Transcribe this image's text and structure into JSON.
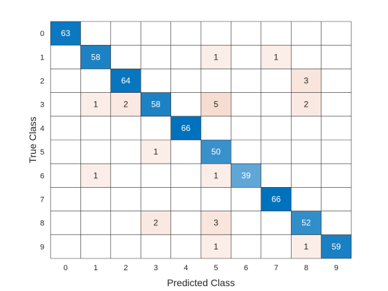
{
  "chart_data": {
    "type": "heatmap",
    "title": "",
    "xlabel": "Predicted Class",
    "ylabel": "True Class",
    "x_categories": [
      "0",
      "1",
      "2",
      "3",
      "4",
      "5",
      "6",
      "7",
      "8",
      "9"
    ],
    "y_categories": [
      "0",
      "1",
      "2",
      "3",
      "4",
      "5",
      "6",
      "7",
      "8",
      "9"
    ],
    "matrix": [
      [
        63,
        0,
        0,
        0,
        0,
        0,
        0,
        0,
        0,
        0
      ],
      [
        0,
        58,
        0,
        0,
        0,
        1,
        0,
        1,
        0,
        0
      ],
      [
        0,
        0,
        64,
        0,
        0,
        0,
        0,
        0,
        3,
        0
      ],
      [
        0,
        1,
        2,
        58,
        0,
        5,
        0,
        0,
        2,
        0
      ],
      [
        0,
        0,
        0,
        0,
        66,
        0,
        0,
        0,
        0,
        0
      ],
      [
        0,
        0,
        0,
        1,
        0,
        50,
        0,
        0,
        0,
        0
      ],
      [
        0,
        1,
        0,
        0,
        0,
        1,
        39,
        0,
        0,
        0
      ],
      [
        0,
        0,
        0,
        0,
        0,
        0,
        0,
        66,
        0,
        0
      ],
      [
        0,
        0,
        0,
        2,
        0,
        3,
        0,
        0,
        52,
        0
      ],
      [
        0,
        0,
        0,
        0,
        0,
        1,
        0,
        0,
        1,
        59
      ]
    ],
    "hide_zero_cells": true,
    "colors": {
      "diagonal_max": "#0072BD",
      "off_diagonal_max": "#D95319",
      "grid": "#262626",
      "text_dark": "#262626",
      "text_light": "#ffffff"
    }
  }
}
